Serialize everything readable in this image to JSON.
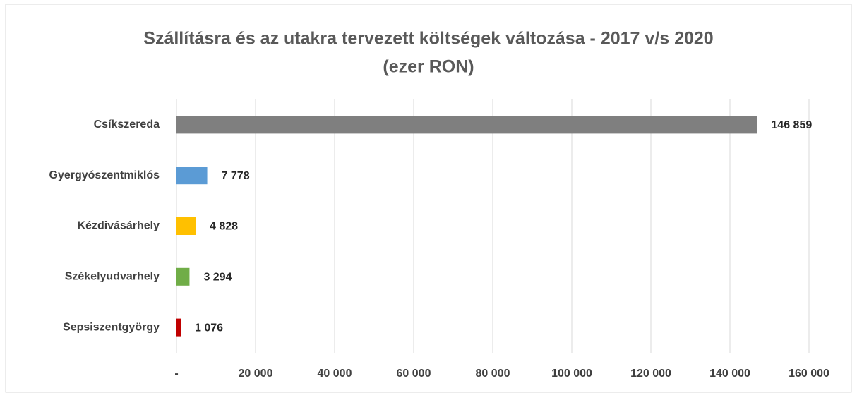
{
  "chart_data": {
    "type": "bar",
    "orientation": "horizontal",
    "title": [
      "Szállításra és az utakra tervezett költségek változása  - 2017 v/s 2020",
      "(ezer RON)"
    ],
    "categories": [
      "Csíkszereda",
      "Gyergyószentmiklós",
      "Kézdivásárhely",
      "Székelyudvarhely",
      "Sepsiszentgyörgy"
    ],
    "values": [
      146859,
      7778,
      4828,
      3294,
      1076
    ],
    "value_labels": [
      "146 859",
      "7 778",
      "4 828",
      "3 294",
      "1 076"
    ],
    "colors": [
      "#7f7f7f",
      "#5b9bd5",
      "#ffc000",
      "#70ad47",
      "#c00000"
    ],
    "xlim": [
      0,
      160000
    ],
    "xticks": [
      {
        "value": 0,
        "label": "-"
      },
      {
        "value": 20000,
        "label": "20 000"
      },
      {
        "value": 40000,
        "label": "40 000"
      },
      {
        "value": 60000,
        "label": "60 000"
      },
      {
        "value": 80000,
        "label": "80 000"
      },
      {
        "value": 100000,
        "label": "100 000"
      },
      {
        "value": 120000,
        "label": "120 000"
      },
      {
        "value": 140000,
        "label": "140 000"
      },
      {
        "value": 160000,
        "label": "160 000"
      }
    ],
    "grid": true
  }
}
